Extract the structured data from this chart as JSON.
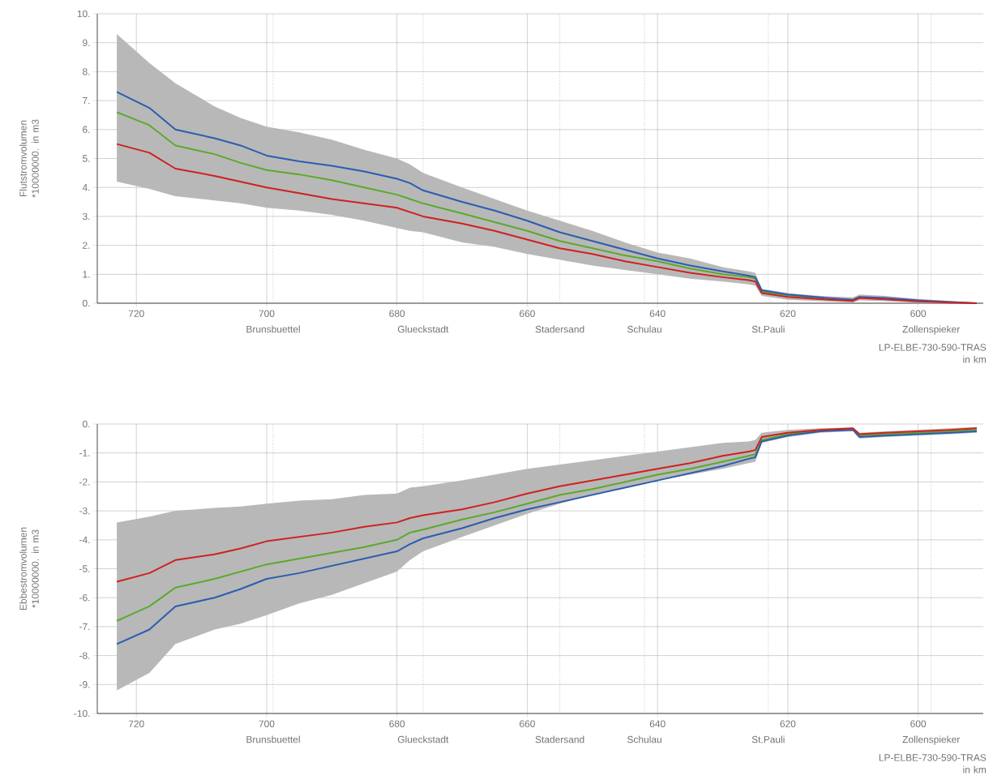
{
  "chart_data": [
    {
      "type": "line",
      "ylabel": "Flutstromvolumen\n*10000000. in m3",
      "xlabel": "LP-ELBE-730-590-TRAS\nin km",
      "x": [
        723,
        718,
        714,
        708,
        704,
        700,
        695,
        690,
        685,
        680,
        678,
        676,
        670,
        665,
        660,
        655,
        650,
        645,
        640,
        635,
        630,
        626,
        625,
        624,
        620,
        615,
        610,
        609,
        605,
        600,
        595,
        591
      ],
      "series": [
        {
          "color": "#5aaa2a",
          "values": [
            6.6,
            6.15,
            5.45,
            5.15,
            4.85,
            4.6,
            4.45,
            4.25,
            4.0,
            3.75,
            3.6,
            3.45,
            3.1,
            2.8,
            2.5,
            2.15,
            1.9,
            1.65,
            1.45,
            1.2,
            1.0,
            0.9,
            0.85,
            0.4,
            0.27,
            0.17,
            null,
            null,
            null,
            null,
            null,
            null
          ],
          "upper": [
            9.3,
            8.3,
            7.6,
            6.8,
            6.4,
            6.1,
            5.9,
            5.65,
            5.3,
            5.0,
            4.8,
            4.5,
            4.0,
            3.6,
            3.2,
            2.85,
            2.5,
            2.1,
            1.75,
            1.55,
            1.25,
            1.1,
            1.05,
            0.5,
            0.35,
            0.25,
            0.2,
            0.3,
            0.25,
            0.15,
            0.08,
            0.02
          ],
          "lower": [
            4.2,
            3.95,
            3.7,
            3.55,
            3.45,
            3.3,
            3.2,
            3.05,
            2.85,
            2.6,
            2.5,
            2.45,
            2.1,
            1.95,
            1.7,
            1.5,
            1.3,
            1.15,
            1.0,
            0.85,
            0.75,
            0.65,
            0.6,
            0.25,
            0.12,
            0.07,
            0.03,
            0.1,
            0.07,
            0.02,
            0.0,
            0.0
          ]
        },
        {
          "color": "#2a5db0",
          "values": [
            7.3,
            6.75,
            6.0,
            5.7,
            5.45,
            5.1,
            4.9,
            4.75,
            4.55,
            4.3,
            4.15,
            3.9,
            3.5,
            3.2,
            2.85,
            2.45,
            2.15,
            1.85,
            1.55,
            1.3,
            1.1,
            0.95,
            0.9,
            0.45,
            0.3,
            0.2,
            0.12,
            0.22,
            0.18,
            0.1,
            0.04,
            0.0
          ]
        },
        {
          "color": "#d02020",
          "values": [
            5.5,
            5.2,
            4.65,
            4.4,
            4.2,
            4.0,
            3.8,
            3.6,
            3.45,
            3.3,
            3.15,
            3.0,
            2.75,
            2.5,
            2.2,
            1.9,
            1.7,
            1.45,
            1.25,
            1.05,
            0.9,
            0.8,
            0.75,
            0.35,
            0.22,
            0.14,
            0.08,
            0.18,
            0.13,
            0.06,
            0.02,
            0.0
          ]
        }
      ],
      "xlim": [
        726,
        590
      ],
      "xticks": [
        720,
        700,
        680,
        660,
        640,
        620,
        600
      ],
      "ylim": [
        0,
        10
      ],
      "yticks": [
        {
          "value": 0,
          "label": "0."
        },
        {
          "value": 1,
          "label": "1."
        },
        {
          "value": 2,
          "label": "2."
        },
        {
          "value": 3,
          "label": "3."
        },
        {
          "value": 4,
          "label": "4."
        },
        {
          "value": 5,
          "label": "5."
        },
        {
          "value": 6,
          "label": "6."
        },
        {
          "value": 7,
          "label": "7."
        },
        {
          "value": 8,
          "label": "8."
        },
        {
          "value": 9,
          "label": "9."
        },
        {
          "value": 10,
          "label": "10."
        }
      ],
      "ref_lines": [
        {
          "axis": "x",
          "value": 699,
          "label": "Brunsbuettel",
          "line_style": "dotted"
        },
        {
          "axis": "x",
          "value": 676,
          "label": "Glueckstadt",
          "line_style": "dotted"
        },
        {
          "axis": "x",
          "value": 655,
          "label": "Stadersand",
          "line_style": "dotted"
        },
        {
          "axis": "x",
          "value": 642,
          "label": "Schulau",
          "line_style": "dotted"
        },
        {
          "axis": "x",
          "value": 623,
          "label": "St.Pauli",
          "line_style": "dotted"
        },
        {
          "axis": "x",
          "value": 598,
          "label": "Zollenspieker",
          "line_style": "dotted"
        }
      ],
      "grid": true,
      "marker": "none",
      "line_style": "solid"
    },
    {
      "type": "line",
      "ylabel": "Ebbestromvolumen\n*10000000. in m3",
      "xlabel": "LP-ELBE-730-590-TRAS\nin km",
      "x": [
        723,
        718,
        714,
        708,
        704,
        700,
        695,
        690,
        685,
        680,
        678,
        676,
        670,
        665,
        660,
        655,
        650,
        645,
        640,
        635,
        630,
        626,
        625,
        624,
        620,
        615,
        610,
        609,
        605,
        600,
        595,
        591
      ],
      "series": [
        {
          "color": "#5aaa2a",
          "values": [
            -6.8,
            -6.3,
            -5.65,
            -5.35,
            -5.1,
            -4.85,
            -4.65,
            -4.45,
            -4.25,
            -4.0,
            -3.75,
            -3.65,
            -3.3,
            -3.05,
            -2.75,
            -2.45,
            -2.25,
            -2.0,
            -1.75,
            -1.55,
            -1.3,
            -1.1,
            -1.05,
            -0.55,
            -0.35,
            -0.22,
            -0.17,
            -0.4,
            -0.35,
            -0.3,
            -0.25,
            -0.2
          ],
          "upper": [
            -3.4,
            -3.2,
            -3.0,
            -2.9,
            -2.85,
            -2.75,
            -2.65,
            -2.6,
            -2.45,
            -2.4,
            -2.2,
            -2.15,
            -1.95,
            -1.75,
            -1.55,
            -1.4,
            -1.25,
            -1.1,
            -0.95,
            -0.8,
            -0.65,
            -0.6,
            -0.55,
            -0.3,
            -0.2,
            -0.15,
            -0.12,
            -0.3,
            -0.25,
            -0.2,
            -0.15,
            -0.1
          ],
          "lower": [
            -9.2,
            -8.6,
            -7.6,
            -7.1,
            -6.9,
            -6.6,
            -6.2,
            -5.9,
            -5.5,
            -5.1,
            -4.7,
            -4.4,
            -3.9,
            -3.5,
            -3.1,
            -2.75,
            -2.45,
            -2.2,
            -1.95,
            -1.75,
            -1.55,
            -1.35,
            -1.3,
            -0.65,
            -0.45,
            -0.3,
            -0.25,
            -0.5,
            -0.45,
            -0.4,
            -0.35,
            -0.3
          ]
        },
        {
          "color": "#2a5db0",
          "values": [
            -7.6,
            -7.1,
            -6.3,
            -6.0,
            -5.7,
            -5.35,
            -5.15,
            -4.9,
            -4.65,
            -4.4,
            -4.15,
            -3.95,
            -3.6,
            -3.25,
            -2.95,
            -2.7,
            -2.45,
            -2.2,
            -1.95,
            -1.7,
            -1.45,
            -1.2,
            -1.15,
            -0.6,
            -0.4,
            -0.25,
            -0.2,
            -0.45,
            -0.4,
            -0.35,
            -0.3,
            -0.25
          ]
        },
        {
          "color": "#d02020",
          "values": [
            -5.45,
            -5.15,
            -4.7,
            -4.5,
            -4.3,
            -4.05,
            -3.9,
            -3.75,
            -3.55,
            -3.4,
            -3.25,
            -3.15,
            -2.95,
            -2.7,
            -2.4,
            -2.15,
            -1.95,
            -1.75,
            -1.55,
            -1.35,
            -1.1,
            -0.95,
            -0.9,
            -0.45,
            -0.3,
            -0.2,
            -0.15,
            -0.35,
            -0.3,
            -0.25,
            -0.2,
            -0.15
          ]
        }
      ],
      "xlim": [
        726,
        590
      ],
      "xticks": [
        720,
        700,
        680,
        660,
        640,
        620,
        600
      ],
      "ylim": [
        -10,
        0
      ],
      "yticks": [
        {
          "value": -10,
          "label": "-10."
        },
        {
          "value": -9,
          "label": "-9."
        },
        {
          "value": -8,
          "label": "-8."
        },
        {
          "value": -7,
          "label": "-7."
        },
        {
          "value": -6,
          "label": "-6."
        },
        {
          "value": -5,
          "label": "-5."
        },
        {
          "value": -4,
          "label": "-4."
        },
        {
          "value": -3,
          "label": "-3."
        },
        {
          "value": -2,
          "label": "-2."
        },
        {
          "value": -1,
          "label": "-1."
        },
        {
          "value": 0,
          "label": "0."
        }
      ],
      "ref_lines": [
        {
          "axis": "x",
          "value": 699,
          "label": "Brunsbuettel",
          "line_style": "dotted"
        },
        {
          "axis": "x",
          "value": 676,
          "label": "Glueckstadt",
          "line_style": "dotted"
        },
        {
          "axis": "x",
          "value": 655,
          "label": "Stadersand",
          "line_style": "dotted"
        },
        {
          "axis": "x",
          "value": 642,
          "label": "Schulau",
          "line_style": "dotted"
        },
        {
          "axis": "x",
          "value": 623,
          "label": "St.Pauli",
          "line_style": "dotted"
        },
        {
          "axis": "x",
          "value": 598,
          "label": "Zollenspieker",
          "line_style": "dotted"
        }
      ],
      "grid": true,
      "marker": "none",
      "line_style": "solid"
    }
  ]
}
